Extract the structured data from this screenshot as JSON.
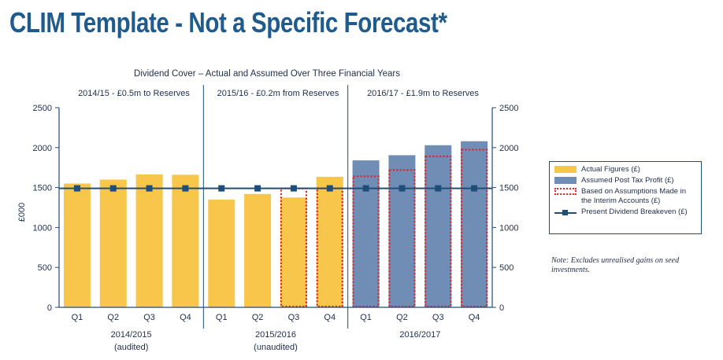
{
  "page": {
    "title": "CLIM Template - Not a Specific Forecast*"
  },
  "note": "Note: Excludes unrealised gains on seed investments.",
  "legend": {
    "actual": "Actual Figures (£)",
    "assumed": "Assumed Post Tax Profit (£)",
    "dotted_line1": "Based on Assumptions Made in",
    "dotted_line2": "the Interim Accounts (£)",
    "breakeven": "Present Dividend Breakeven (£)"
  },
  "colors": {
    "actual": "#f7c64b",
    "assumed": "#6f8db5",
    "dotted": "#e2252b",
    "line": "#1f4e79",
    "title": "#1f5b8d"
  },
  "chart_data": {
    "type": "bar",
    "title": "Dividend Cover – Actual and Assumed Over Three Financial Years",
    "ylabel": "£000",
    "ylim": [
      0,
      2500
    ],
    "yticks": [
      0,
      500,
      1000,
      1500,
      2000,
      2500
    ],
    "grid": false,
    "legend_position": "right",
    "periods": [
      {
        "label": "2014/2015",
        "sublabel": "(audited)",
        "header": "2014/15 - £0.5m to Reserves"
      },
      {
        "label": "2015/2016",
        "sublabel": "(unaudited)",
        "header": "2015/16 - £0.2m from Reserves"
      },
      {
        "label": "2016/2017",
        "sublabel": "",
        "header": "2016/17 - £1.9m to Reserves"
      }
    ],
    "categories": [
      "Q1",
      "Q2",
      "Q3",
      "Q4",
      "Q1",
      "Q2",
      "Q3",
      "Q4",
      "Q1",
      "Q2",
      "Q3",
      "Q4"
    ],
    "series": [
      {
        "name": "Actual Figures (£)",
        "values": [
          1550,
          1600,
          1665,
          1660,
          1350,
          1420,
          1375,
          1635,
          null,
          null,
          null,
          null
        ]
      },
      {
        "name": "Assumed Post Tax Profit (£)",
        "values": [
          null,
          null,
          null,
          null,
          null,
          null,
          null,
          null,
          1840,
          1905,
          2030,
          2080
        ]
      },
      {
        "name": "Based on Assumptions Made in the Interim Accounts (£)",
        "values": [
          null,
          null,
          null,
          null,
          null,
          null,
          1490,
          1490,
          1640,
          1720,
          1890,
          1975
        ]
      },
      {
        "name": "Present Dividend Breakeven (£)",
        "values": [
          1490,
          1490,
          1490,
          1490,
          1490,
          1490,
          1490,
          1490,
          1490,
          1490,
          1490,
          1490
        ]
      }
    ]
  }
}
